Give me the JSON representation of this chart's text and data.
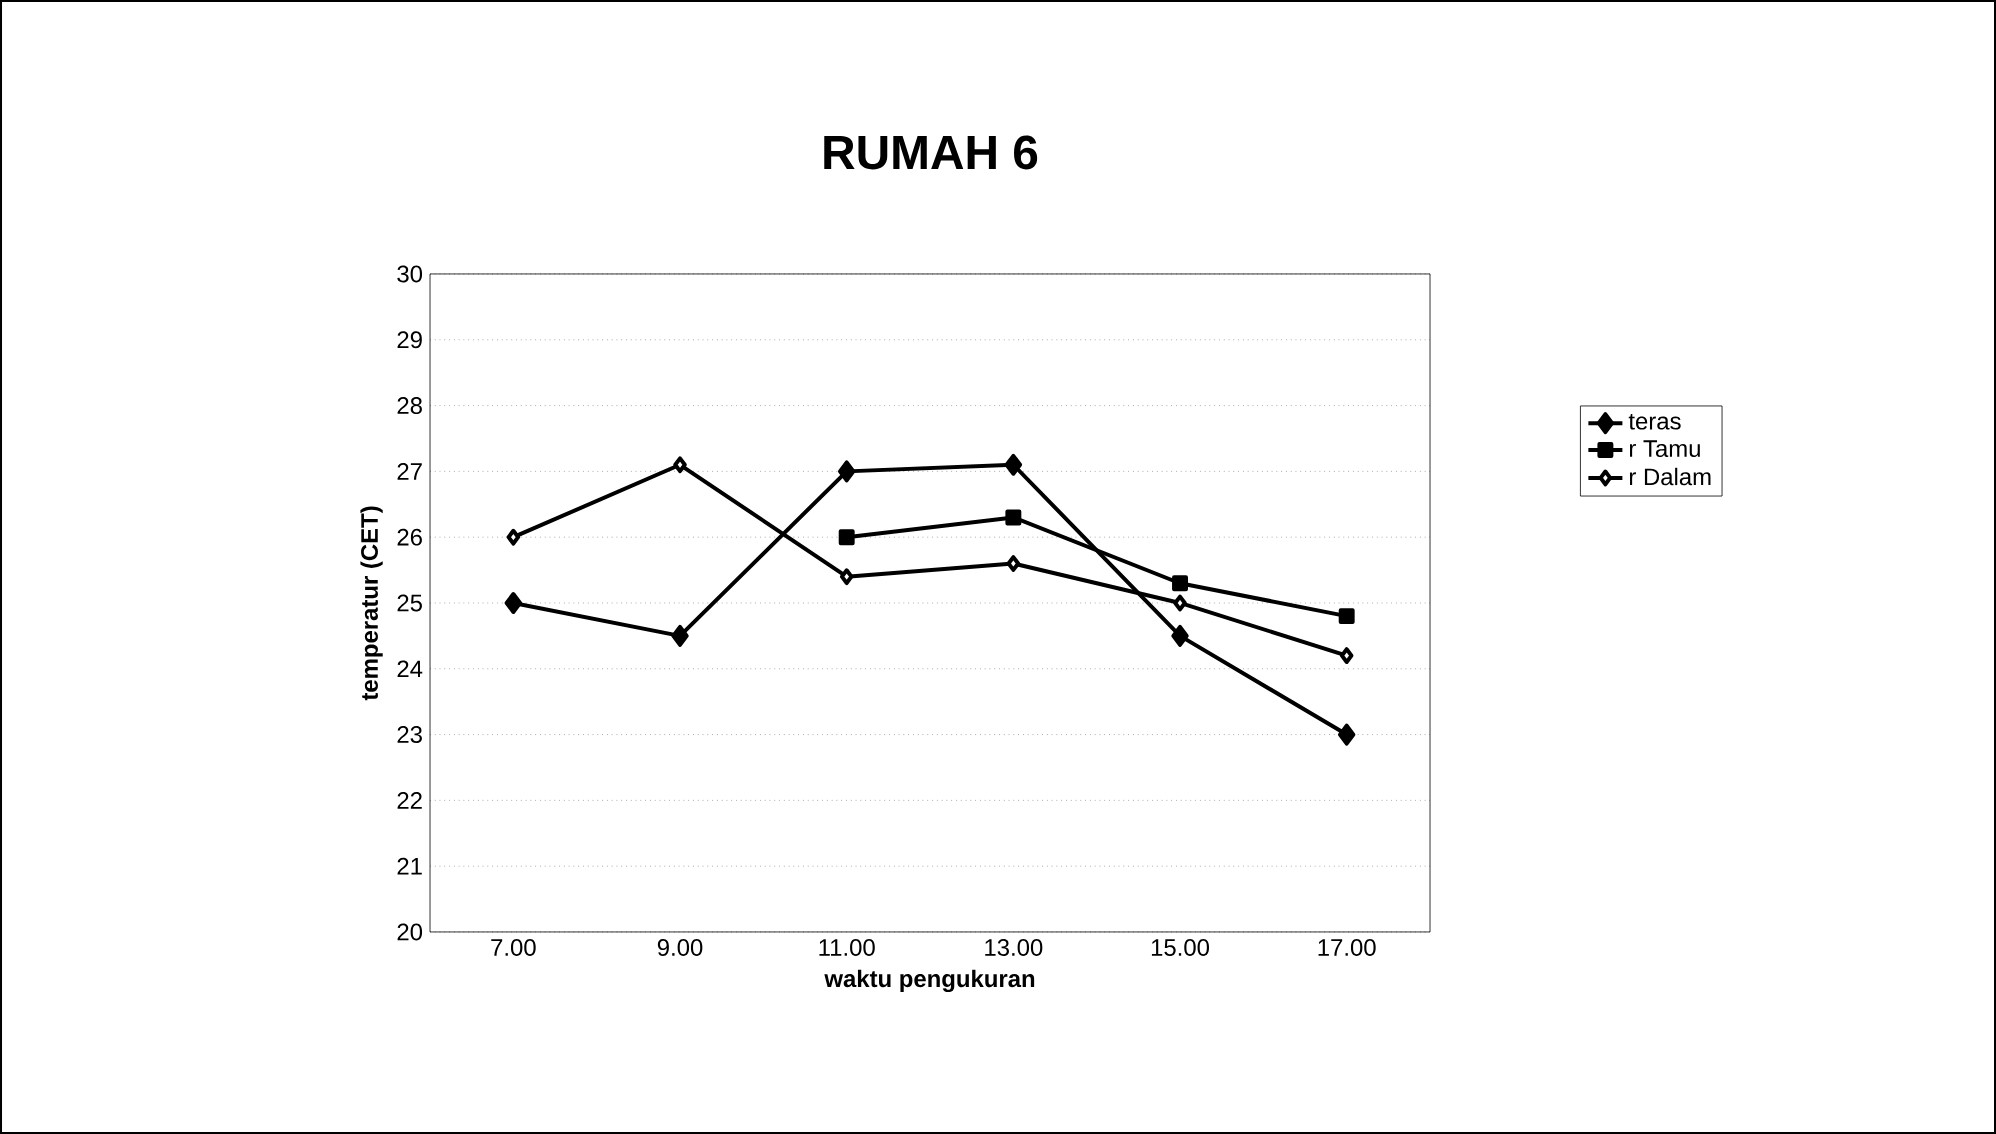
{
  "chart_data": {
    "type": "line",
    "title": "RUMAH  6",
    "xlabel": "waktu pengukuran",
    "ylabel": "temperatur (CET)",
    "categories": [
      "7.00",
      "9.00",
      "11.00",
      "13.00",
      "15.00",
      "17.00"
    ],
    "series": [
      {
        "name": "teras",
        "color": "#000000",
        "marker": "diamond",
        "values": [
          25,
          24.5,
          27,
          27.1,
          24.5,
          23
        ]
      },
      {
        "name": "r Tamu",
        "color": "#000000",
        "marker": "square",
        "values": [
          null,
          null,
          26,
          26.3,
          25.3,
          24.8
        ]
      },
      {
        "name": "r Dalam",
        "color": "#000000",
        "marker": "diamond",
        "values": [
          26,
          27.1,
          25.4,
          25.6,
          25,
          24.2
        ]
      }
    ],
    "ylim": [
      20,
      30
    ],
    "yticks": [
      20,
      21,
      22,
      23,
      24,
      25,
      26,
      27,
      28,
      29,
      30
    ],
    "grid": "y",
    "legend": "right",
    "line_style": "solid"
  }
}
